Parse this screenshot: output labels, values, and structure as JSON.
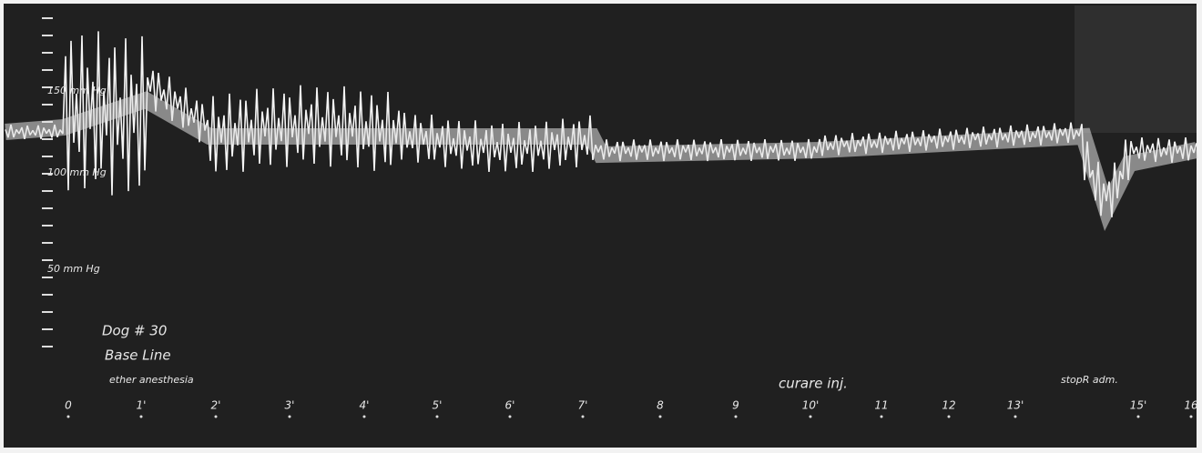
{
  "scale_labels": [
    "150 mm Hg",
    "100 mm Hg",
    "50 mm Hg"
  ],
  "notes": {
    "subject": "Dog # 30",
    "condition": "Base Line",
    "anesthesia": "ether anesthesia",
    "injection": "curare inj.",
    "respiration": "stopR adm."
  },
  "time_marks": [
    "0",
    "1'",
    "2'",
    "3'",
    "4'",
    "5'",
    "6'",
    "7'",
    "8",
    "9",
    "10'",
    "11",
    "12",
    "13'",
    "15'",
    "16"
  ]
}
